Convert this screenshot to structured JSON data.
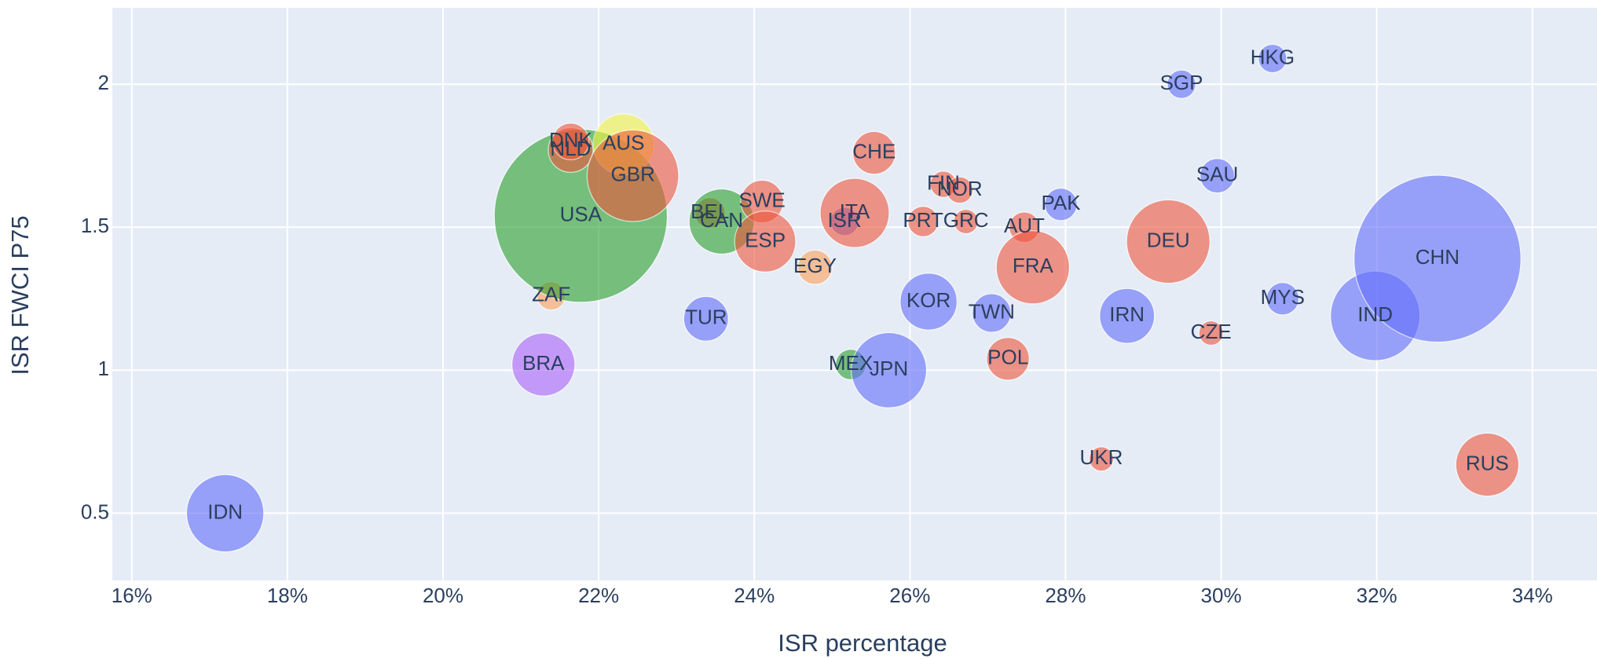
{
  "chart_data": {
    "type": "scatter",
    "x_label": "ISR percentage",
    "y_label": "ISR FWCI P75",
    "xlim": [
      15.75,
      34.83
    ],
    "ylim": [
      0.265,
      2.267
    ],
    "xticks": [
      {
        "value": 16,
        "label": "16%"
      },
      {
        "value": 18,
        "label": "18%"
      },
      {
        "value": 20,
        "label": "20%"
      },
      {
        "value": 22,
        "label": "22%"
      },
      {
        "value": 24,
        "label": "24%"
      },
      {
        "value": 26,
        "label": "26%"
      },
      {
        "value": 28,
        "label": "28%"
      },
      {
        "value": 30,
        "label": "30%"
      },
      {
        "value": 32,
        "label": "32%"
      },
      {
        "value": 34,
        "label": "34%"
      }
    ],
    "yticks": [
      0.5,
      1,
      1.5,
      2
    ],
    "grid": true,
    "labels": [
      "IDN",
      "BRA",
      "ZAF",
      "USA",
      "NLD",
      "DNK",
      "AUS",
      "GBR",
      "TUR",
      "BEL",
      "CAN",
      "SWE",
      "ESP",
      "EGY",
      "MEX",
      "JPN",
      "ISR",
      "ITA",
      "CHE",
      "PRT",
      "FIN",
      "NOR",
      "GRC",
      "KOR",
      "TWN",
      "POL",
      "AUT",
      "FRA",
      "PAK",
      "UKR",
      "IRN",
      "DEU",
      "SGP",
      "CZE",
      "SAU",
      "HKG",
      "MYS",
      "IND",
      "CHN",
      "RUS"
    ],
    "x": [
      17.2,
      21.29,
      21.39,
      21.77,
      21.64,
      21.64,
      22.32,
      22.44,
      23.38,
      23.43,
      23.58,
      24.1,
      24.14,
      24.78,
      25.24,
      25.73,
      25.16,
      25.29,
      25.54,
      26.17,
      26.43,
      26.64,
      26.72,
      26.24,
      27.05,
      27.26,
      27.47,
      27.58,
      27.94,
      28.46,
      28.79,
      29.32,
      29.49,
      29.87,
      29.95,
      30.66,
      30.79,
      31.98,
      32.78,
      33.42
    ],
    "y": [
      0.5,
      1.02,
      1.26,
      1.54,
      1.77,
      1.8,
      1.79,
      1.68,
      1.18,
      1.55,
      1.52,
      1.59,
      1.45,
      1.36,
      1.02,
      1.0,
      1.52,
      1.55,
      1.76,
      1.52,
      1.65,
      1.63,
      1.52,
      1.24,
      1.2,
      1.04,
      1.5,
      1.36,
      1.58,
      0.69,
      1.19,
      1.45,
      2.0,
      1.13,
      1.68,
      2.09,
      1.25,
      1.19,
      1.39,
      0.67
    ],
    "sizes": [
      38,
      31,
      14,
      85,
      22,
      18,
      30,
      45,
      22,
      15,
      32,
      21,
      30,
      17,
      15,
      37,
      14,
      34,
      21,
      15,
      13,
      13,
      12,
      28,
      19,
      21,
      15,
      36,
      16,
      12,
      27,
      41,
      14,
      12,
      17,
      14,
      16,
      44,
      82,
      31
    ],
    "colors": [
      "#636efa",
      "#ab63fa",
      "#ffa15a",
      "#2ca02c",
      "#ef553b",
      "#ef553b",
      "#f5f542",
      "#ef553b",
      "#636efa",
      "#ef553b",
      "#2ca02c",
      "#ef553b",
      "#ef553b",
      "#ffa15a",
      "#2ca02c",
      "#636efa",
      "#636efa",
      "#ef553b",
      "#ef553b",
      "#ef553b",
      "#ef553b",
      "#ef553b",
      "#ef553b",
      "#636efa",
      "#636efa",
      "#ef553b",
      "#ef553b",
      "#ef553b",
      "#636efa",
      "#ef553b",
      "#636efa",
      "#ef553b",
      "#636efa",
      "#ef553b",
      "#636efa",
      "#636efa",
      "#636efa",
      "#636efa",
      "#636efa",
      "#ef553b"
    ]
  }
}
